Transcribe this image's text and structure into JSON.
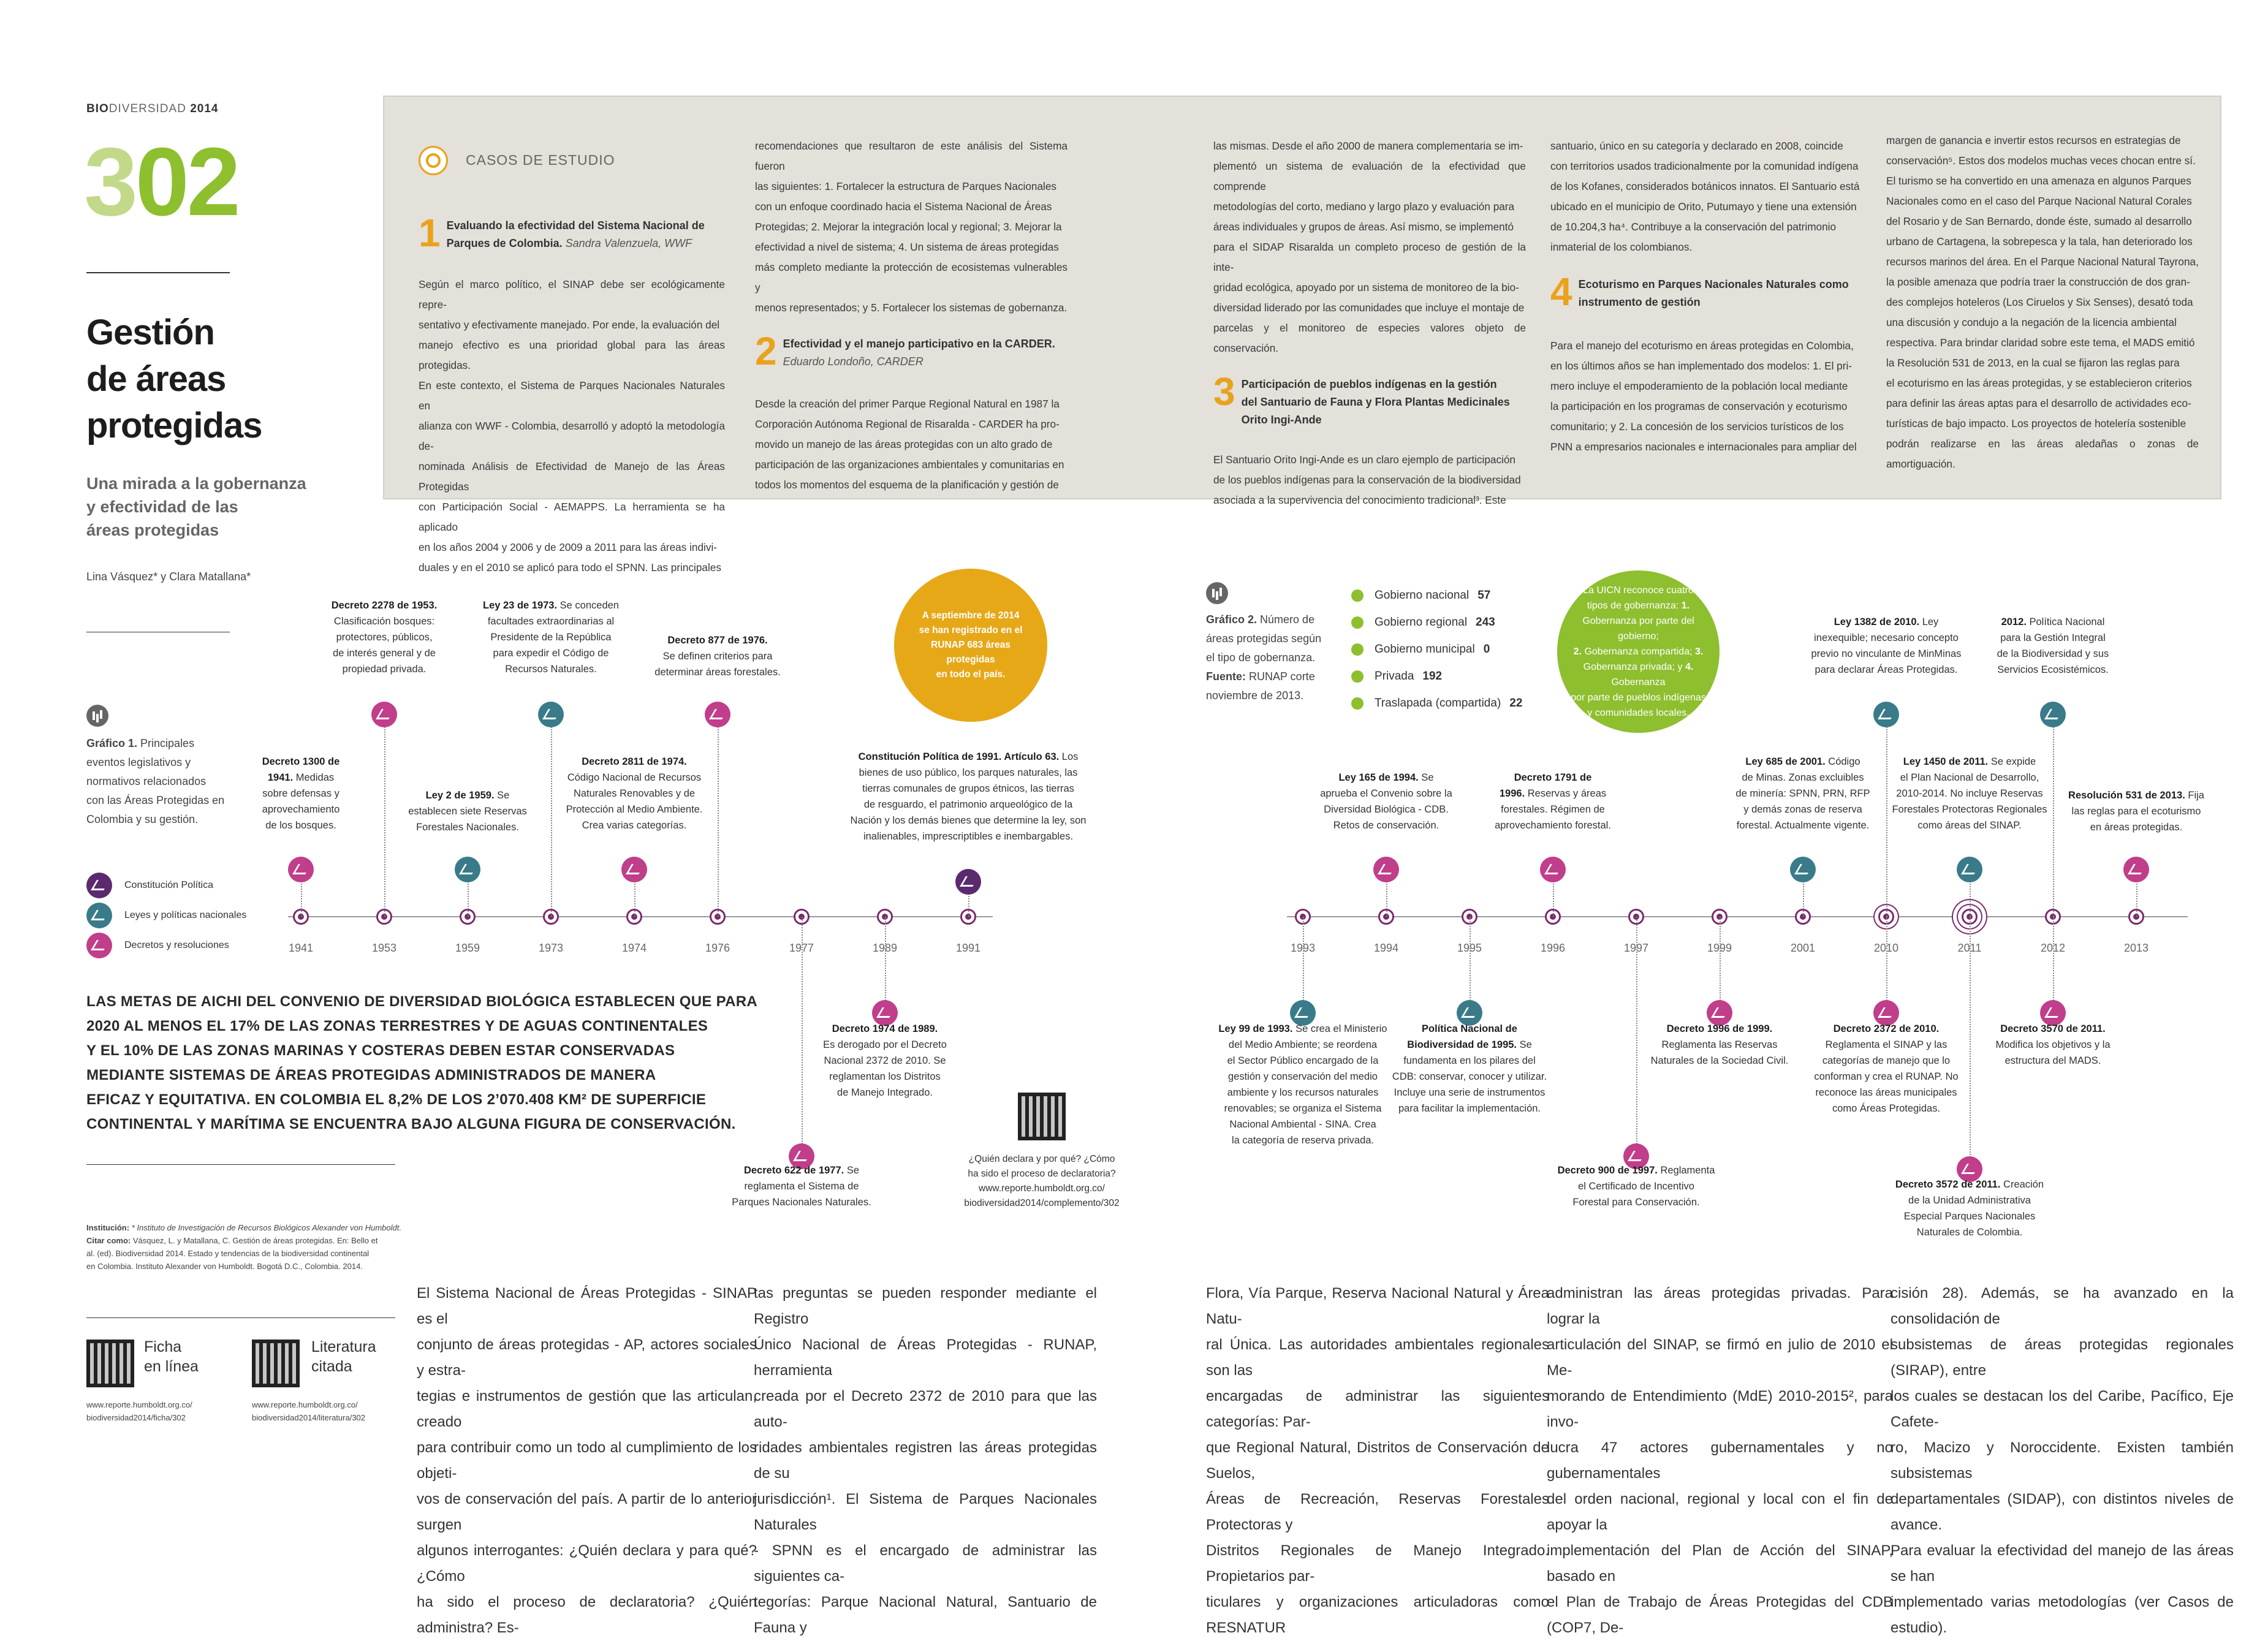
{
  "header": {
    "brand_bold": "BIO",
    "brand_rest": "DIVERSIDAD",
    "year": "2014"
  },
  "page_number": "302",
  "article": {
    "title": "Gestión\nde áreas\nprotegidas",
    "subtitle": "Una mirada a la gobernanza\ny efectividad de las\náreas protegidas",
    "authors": "Lina Vásquez* y Clara Matallana*"
  },
  "colors": {
    "accent_green": "#8dbf2e",
    "accent_green_light": "#c3d98a",
    "accent_orange": "#e9a21c",
    "constitucion": "#5b2a6e",
    "leyes": "#3a7b8a",
    "decretos": "#c03e8a"
  },
  "case_studies": {
    "title": "CASOS DE ESTUDIO",
    "col1": {
      "num": "1",
      "head": "Evaluando la efectividad del Sistema Nacional de\nParques de Colombia.",
      "author": "Sandra Valenzuela, WWF",
      "text": "Según el marco político, el SINAP debe ser ecológicamente repre-\nsentativo y efectivamente manejado. Por ende, la evaluación del\nmanejo efectivo es una prioridad global para las áreas protegidas.\nEn este contexto, el Sistema de Parques Nacionales Naturales en\nalianza con WWF - Colombia, desarrolló y adoptó la metodología de-\nnominada Análisis de Efectividad de Manejo de las Áreas Protegidas\ncon Participación Social - AEMAPPS. La herramienta se ha aplicado\nen los años 2004 y 2006 y de 2009 a 2011 para las áreas indivi-\nduales y en el 2010 se aplicó para todo el SPNN. Las principales"
    },
    "col2": {
      "text_top": "recomendaciones que resultaron de este análisis del Sistema fueron\nlas siguientes: 1. Fortalecer la estructura de Parques Nacionales\ncon un enfoque coordinado hacia el Sistema Nacional de Áreas\nProtegidas; 2. Mejorar la integración local y regional; 3. Mejorar la\nefectividad a nivel de sistema; 4. Un sistema de áreas protegidas\nmás completo mediante la protección de ecosistemas vulnerables y\nmenos representados; y 5. Fortalecer los sistemas de gobernanza.",
      "num": "2",
      "head": "Efectividad y el manejo participativo en la CARDER.",
      "author": "Eduardo Londoño, CARDER",
      "text": "Desde la creación del primer Parque Regional Natural en 1987 la\nCorporación Autónoma Regional de Risaralda - CARDER ha pro-\nmovido un manejo de las áreas protegidas con un alto grado de\nparticipación de las organizaciones ambientales y comunitarias en\ntodos los momentos del esquema de la planificación y gestión de"
    },
    "col3": {
      "text_top": "las mismas. Desde el año 2000 de manera complementaria se im-\nplementó un sistema de evaluación de la efectividad que comprende\nmetodologías del corto, mediano y largo plazo y evaluación para\náreas individuales y grupos de áreas. Así mismo, se implementó\npara el SIDAP Risaralda un completo proceso de gestión de la inte-\ngridad ecológica, apoyado por un sistema de monitoreo de la bio-\ndiversidad liderado por las comunidades que incluye el montaje de\nparcelas y el monitoreo de especies valores objeto de conservación.",
      "num": "3",
      "head": "Participación de pueblos indígenas en la gestión\ndel Santuario de Fauna y Flora Plantas Medicinales\nOrito Ingi-Ande",
      "text": "El Santuario Orito Ingi-Ande es un claro ejemplo de participación\nde los pueblos indígenas para la conservación de la biodiversidad\nasociada a la supervivencia del conocimiento tradicional³. Este"
    },
    "col4": {
      "text_top": "santuario, único en su categoría y declarado en 2008, coincide\ncon territorios usados tradicionalmente por la comunidad indígena\nde los Kofanes, considerados botánicos innatos. El Santuario está\nubicado en el municipio de Orito, Putumayo y tiene una extensión\nde 10.204,3 ha⁴. Contribuye a la conservación del patrimonio\ninmaterial de los colombianos.",
      "num": "4",
      "head": "Ecoturismo en Parques Nacionales Naturales como\ninstrumento de gestión",
      "text": "Para el manejo del ecoturismo en áreas protegidas en Colombia,\nen los últimos años se han implementado dos modelos: 1. El pri-\nmero incluye el empoderamiento de la población local mediante\nla participación en los programas de conservación y ecoturismo\ncomunitario; y 2. La concesión de los servicios turísticos de los\nPNN a empresarios nacionales e internacionales para ampliar del"
    },
    "col5": {
      "text": "margen de ganancia e invertir estos recursos en estrategias de\nconservación⁵. Estos dos modelos muchas veces chocan entre sí.\nEl turismo se ha convertido en una amenaza en algunos Parques\nNacionales como en el caso del Parque Nacional Natural Corales\ndel Rosario y de San Bernardo, donde éste, sumado al desarrollo\nurbano de Cartagena, la sobrepesca y la tala, han deteriorado los\nrecursos marinos del área. En el Parque Nacional Natural Tayrona,\nla posible amenaza que podría traer la construcción de dos gran-\ndes complejos hoteleros (Los Ciruelos y Six Senses), desató toda\nuna discusión y condujo a la negación de la licencia ambiental\nrespectiva. Para brindar claridad sobre este tema, el MADS emitió\nla Resolución 531 de 2013, en la cual se fijaron las reglas para\nel ecoturismo en las áreas protegidas, y se establecieron criterios\npara definir las áreas aptas para el desarrollo de actividades eco-\nturísticas de bajo impacto. Los proyectos de hotelería sostenible\npodrán realizarse en las áreas aledañas o zonas de amortiguación."
    }
  },
  "grafico1": {
    "label": "Gráfico 1.",
    "text": " Principales\neventos legislativos y\nnormativos relacionados\ncon las Áreas Protegidas en\nColombia y su gestión.",
    "legend": [
      "Constitución Política",
      "Leyes y políticas nacionales",
      "Decretos y resoluciones"
    ]
  },
  "grafico2": {
    "label": "Gráfico 2.",
    "text": " Número de\náreas protegidas según\nel tipo de gobernanza.",
    "source_label": "Fuente:",
    "source": " RUNAP corte\nnoviembre de 2013.",
    "items": [
      {
        "name": "Gobierno nacional",
        "value": "57"
      },
      {
        "name": "Gobierno regional",
        "value": "243"
      },
      {
        "name": "Gobierno municipal",
        "value": "0"
      },
      {
        "name": "Privada",
        "value": "192"
      },
      {
        "name": "Traslapada (compartida)",
        "value": "22"
      }
    ]
  },
  "callouts": {
    "runap": "A septiembre de 2014\nse han registrado en el\nRUNAP 683 áreas protegidas\nen todo el país.",
    "uicn_pre": "La UICN reconoce cuatro\ntipos de gobernanza: ",
    "uicn_1": "1.",
    "uicn_1t": "\nGobernanza por parte del gobierno;\n",
    "uicn_2": "2.",
    "uicn_2t": " Gobernanza compartida; ",
    "uicn_3": "3.",
    "uicn_3t": "\nGobernanza privada; y ",
    "uicn_4": "4.",
    "uicn_4t": " Gobernanza\npor parte de pueblos indígenas\ny comunidades locales."
  },
  "timeline": {
    "years": [
      "1941",
      "1953",
      "1959",
      "1973",
      "1974",
      "1976",
      "1977",
      "1989",
      "1991",
      "1993",
      "1994",
      "1995",
      "1996",
      "1997",
      "1999",
      "2001",
      "2010",
      "2011",
      "2012",
      "2013"
    ],
    "events": [
      {
        "b": "Decreto 1300 de\n1941.",
        "t": " Medidas\nsobre defensas y\naprovechamiento\nde los bosques."
      },
      {
        "b": "Decreto 2278 de 1953.",
        "t": "\nClasificación bosques:\nprotectores, públicos,\nde interés general y de\npropiedad privada."
      },
      {
        "b": "Ley 2 de 1959.",
        "t": " Se\nestablecen siete Reservas\nForestales Nacionales."
      },
      {
        "b": "Ley 23 de 1973.",
        "t": " Se conceden\nfacultades extraordinarias al\nPresidente de la República\npara expedir el Código de\nRecursos Naturales."
      },
      {
        "b": "Decreto 2811 de 1974.",
        "t": "\nCódigo Nacional de Recursos\nNaturales Renovables y de\nProtección al Medio Ambiente.\nCrea varias categorías."
      },
      {
        "b": "Decreto 877 de 1976.",
        "t": "\nSe definen criterios para\ndeterminar áreas forestales."
      },
      {
        "b": "Decreto 622 de 1977.",
        "t": " Se\nreglamenta el Sistema de\nParques Nacionales Naturales."
      },
      {
        "b": "Decreto 1974 de 1989.",
        "t": "\nEs derogado por el Decreto\nNacional 2372 de 2010. Se\nreglamentan los Distritos\nde Manejo Integrado."
      },
      {
        "b": "Constitución Política de 1991. Artículo 63.",
        "t": " Los\nbienes de uso público, los parques naturales, las\ntierras comunales de grupos étnicos, las tierras\nde resguardo, el patrimonio arqueológico de la\nNación y los demás bienes que determine la ley, son\ninalienables, imprescriptibles e inembargables."
      },
      {
        "b": "Ley 99 de 1993.",
        "t": " Se crea el Ministerio\ndel Medio Ambiente; se reordena\nel Sector Público encargado de la\ngestión y conservación del medio\nambiente y los recursos naturales\nrenovables; se organiza el Sistema\nNacional Ambiental - SINA. Crea\nla categoría de reserva privada."
      },
      {
        "b": "Ley 165 de 1994.",
        "t": " Se\naprueba el Convenio sobre la\nDiversidad Biológica - CDB.\nRetos de conservación."
      },
      {
        "b": "Política Nacional de\nBiodiversidad de 1995.",
        "t": " Se\nfundamenta en los pilares del\nCDB: conservar, conocer y utilizar.\nIncluye una serie de instrumentos\npara facilitar la implementación."
      },
      {
        "b": "Decreto 1791 de\n1996.",
        "t": " Reservas y áreas\nforestales. Régimen de\naprovechamiento forestal."
      },
      {
        "b": "Decreto 900 de 1997.",
        "t": " Reglamenta\nel Certificado de Incentivo\nForestal para Conservación."
      },
      {
        "b": "Decreto 1996 de 1999.",
        "t": "\nReglamenta las Reservas\nNaturales de la Sociedad Civil."
      },
      {
        "b": "Ley 685 de 2001.",
        "t": " Código\nde Minas. Zonas excluibles\nde minería: SPNN, PRN, RFP\ny demás zonas de reserva\nforestal. Actualmente vigente."
      },
      {
        "b": "Ley 1382 de 2010.",
        "t": " Ley\ninexequible; necesario concepto\nprevio no vinculante de MinMinas\npara declarar Áreas Protegidas."
      },
      {
        "b": "Decreto 2372 de 2010.",
        "t": "\nReglamenta el SINAP y las\ncategorías de manejo que lo\nconforman y crea el RUNAP. No\nreconoce las áreas municipales\ncomo Áreas Protegidas."
      },
      {
        "b": "Ley 1450 de 2011.",
        "t": " Se expide\nel Plan Nacional de Desarrollo,\n2010-2014. No incluye Reservas\nForestales Protectoras Regionales\ncomo áreas del SINAP."
      },
      {
        "b": "Decreto 3570 de 2011.",
        "t": "\nModifica los objetivos y la\nestructura del MADS."
      },
      {
        "b": "Decreto 3572 de 2011.",
        "t": " Creación\nde la Unidad Administrativa\nEspecial Parques Nacionales\nNaturales de Colombia."
      },
      {
        "b": "2012.",
        "t": " Política Nacional\npara la Gestión Integral\nde la Biodiversidad y sus\nServicios Ecosistémicos."
      },
      {
        "b": "Resolución 531 de 2013.",
        "t": " Fija\nlas reglas para el ecoturismo\nen áreas protegidas."
      }
    ]
  },
  "goal": "LAS METAS DE AICHI DEL CONVENIO DE DIVERSIDAD BIOLÓGICA ESTABLECEN QUE PARA\n2020 AL MENOS EL 17% DE LAS ZONAS TERRESTRES Y DE AGUAS CONTINENTALES\nY EL 10% DE LAS ZONAS MARINAS Y COSTERAS DEBEN ESTAR CONSERVADAS\nMEDIANTE SISTEMAS DE ÁREAS PROTEGIDAS ADMINISTRADOS DE MANERA\nEFICAZ Y EQUITATIVA. EN COLOMBIA EL 8,2% DE LOS 2’070.408 KM² DE SUPERFICIE\nCONTINENTAL Y MARÍTIMA SE ENCUENTRA BAJO ALGUNA FIGURA DE CONSERVACIÓN.",
  "qr_complement": "¿Quién declara y por qué? ¿Cómo\nha sido el proceso de declaratoria?\nwww.reporte.humboldt.org.co/\nbiodiversidad2014/complemento/302",
  "institution": {
    "label": "Institución:",
    "text": " * Instituto de Investigación de Recursos Biológicos Alexander von Humboldt.",
    "cite_label": "Citar como:",
    "cite": " Vásquez, L. y Matallana, C. Gestión de áreas protegidas. En: Bello et\nal. (ed). Biodiversidad 2014. Estado y tendencias de la biodiversidad continental\nen Colombia. Instituto Alexander von Humboldt. Bogotá D.C., Colombia. 2014."
  },
  "qr_links": [
    {
      "label": "Ficha\nen línea",
      "url": "www.reporte.humboldt.org.co/\nbiodiversidad2014/ficha/302"
    },
    {
      "label": "Literatura\ncitada",
      "url": "www.reporte.humboldt.org.co/\nbiodiversidad2014/literatura/302"
    }
  ],
  "body_text": {
    "c1": "El Sistema Nacional de Áreas Protegidas - SINAP es el\nconjunto de áreas protegidas - AP, actores sociales y estra-\ntegias e instrumentos de gestión que las articulan, creado\npara contribuir como un todo al cumplimiento de los objeti-\nvos de conservación del país. A partir de lo anterior surgen\nalgunos interrogantes: ¿Quién declara y para qué? ¿Cómo\nha sido el proceso de declaratoria? ¿Quién administra? Es-",
    "c2": "tas preguntas se pueden responder mediante el Registro\nÚnico Nacional de Áreas Protegidas - RUNAP, herramienta\ncreada por el Decreto 2372 de 2010 para que las auto-\nridades ambientales registren las áreas protegidas de su\njurisdicción¹. El Sistema de Parques Nacionales Naturales\n- SPNN es el encargado de administrar las siguientes ca-\ntegorías: Parque Nacional Natural, Santuario de Fauna y",
    "c3": "Flora, Vía Parque, Reserva Nacional Natural y Área Natu-\nral Única. Las autoridades ambientales regionales son las\nencargadas de administrar las siguientes categorías: Par-\nque Regional Natural, Distritos de Conservación de Suelos,\nÁreas de Recreación, Reservas Forestales Protectoras y\nDistritos Regionales de Manejo Integrado. Propietarios par-\nticulares y organizaciones articuladoras como RESNATUR",
    "c4": "administran las áreas protegidas privadas. Para lograr la\narticulación del SINAP, se firmó en julio de 2010 el Me-\nmorando de Entendimiento (MdE) 2010-2015², para invo-\nlucra 47 actores gubernamentales y no gubernamentales\ndel orden nacional, regional y local con el fin de apoyar la\nimplementación del Plan de Acción del SINAP, basado en\nel Plan de Trabajo de Áreas Protegidas del CDB (COP7, De-",
    "c5": "cisión 28). Además, se ha avanzado en la consolidación de\nsubsistemas de áreas protegidas regionales (SIRAP), entre\nlos cuales se destacan los del Caribe, Pacífico, Eje Cafete-\nro, Macizo y Noroccidente. Existen también subsistemas\ndepartamentales (SIDAP), con distintos niveles de avance.\nPara evaluar la efectividad del manejo de las áreas se han\nimplementado varias metodologías (ver Casos de estudio)."
  }
}
